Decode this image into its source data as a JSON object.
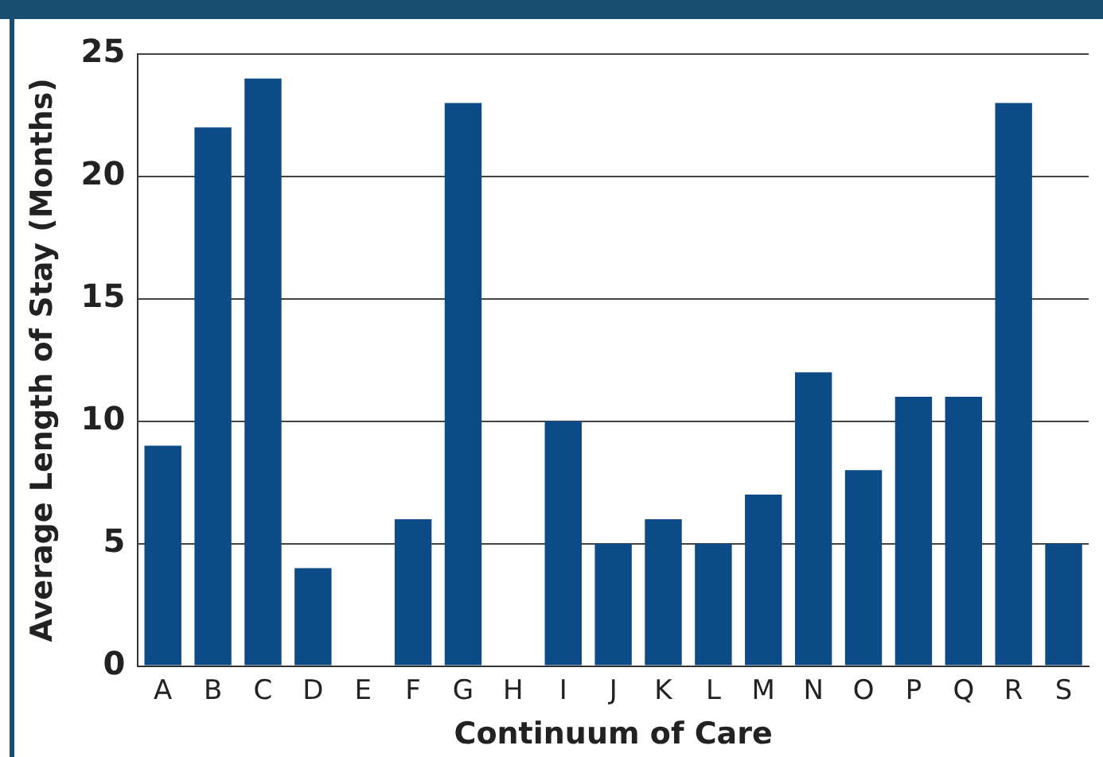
{
  "chart_data": {
    "type": "bar",
    "xlabel": "Continuum of Care",
    "ylabel": "Average Length of Stay (Months)",
    "categories": [
      "A",
      "B",
      "C",
      "D",
      "E",
      "F",
      "G",
      "H",
      "I",
      "J",
      "K",
      "L",
      "M",
      "N",
      "O",
      "P",
      "Q",
      "R",
      "S"
    ],
    "values": [
      9,
      22,
      24,
      4,
      0,
      6,
      23,
      0,
      10,
      5,
      6,
      5,
      7,
      12,
      8,
      11,
      11,
      23,
      5
    ],
    "color": "#0d4a88",
    "ylim": [
      0,
      25
    ],
    "yticks": [
      0,
      5,
      10,
      15,
      20,
      25
    ],
    "grid": "y",
    "legend": false
  }
}
